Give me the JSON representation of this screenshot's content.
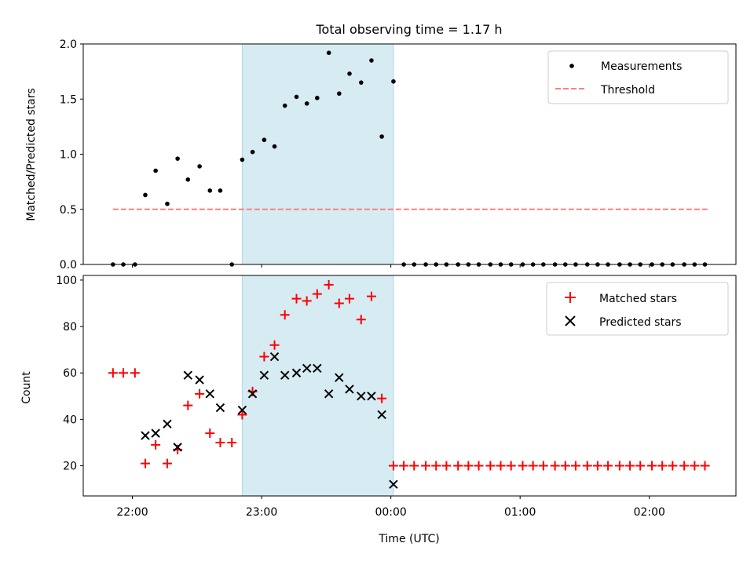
{
  "figure": {
    "title": "Total observing time = 1.17 h",
    "xlabel": "Time (UTC)",
    "x_ticks": [
      "22:00",
      "23:00",
      "00:00",
      "01:00",
      "02:00"
    ]
  },
  "chart_data": [
    {
      "type": "scatter",
      "panel": "top",
      "ylabel": "Matched/Predicted stars",
      "x_unit": "hours since 22:00 UTC",
      "xlim": [
        -0.38,
        4.67
      ],
      "ylim": [
        0,
        2.0
      ],
      "y_ticks": [
        0.0,
        0.5,
        1.0,
        1.5,
        2.0
      ],
      "y_tick_labels": [
        "0.0",
        "0.5",
        "1.0",
        "1.5",
        "2.0"
      ],
      "shaded_interval": [
        0.85,
        2.02
      ],
      "shade_color": "#add8e6",
      "legend_position": "upper right",
      "series": [
        {
          "name": "Measurements",
          "kind": "dots",
          "color": "#000000",
          "points": [
            [
              -0.15,
              0.0
            ],
            [
              -0.07,
              0.0
            ],
            [
              0.02,
              0.0
            ],
            [
              0.1,
              0.63
            ],
            [
              0.18,
              0.85
            ],
            [
              0.27,
              0.55
            ],
            [
              0.35,
              0.96
            ],
            [
              0.43,
              0.77
            ],
            [
              0.52,
              0.89
            ],
            [
              0.6,
              0.67
            ],
            [
              0.68,
              0.67
            ],
            [
              0.77,
              0.0
            ],
            [
              0.85,
              0.95
            ],
            [
              0.93,
              1.02
            ],
            [
              1.02,
              1.13
            ],
            [
              1.1,
              1.07
            ],
            [
              1.18,
              1.44
            ],
            [
              1.27,
              1.52
            ],
            [
              1.35,
              1.46
            ],
            [
              1.43,
              1.51
            ],
            [
              1.52,
              1.92
            ],
            [
              1.6,
              1.55
            ],
            [
              1.68,
              1.73
            ],
            [
              1.77,
              1.65
            ],
            [
              1.85,
              1.85
            ],
            [
              1.93,
              1.16
            ],
            [
              2.02,
              1.66
            ],
            [
              2.1,
              0.0
            ],
            [
              2.18,
              0.0
            ],
            [
              2.27,
              0.0
            ],
            [
              2.35,
              0.0
            ],
            [
              2.43,
              0.0
            ],
            [
              2.52,
              0.0
            ],
            [
              2.6,
              0.0
            ],
            [
              2.68,
              0.0
            ],
            [
              2.77,
              0.0
            ],
            [
              2.85,
              0.0
            ],
            [
              2.93,
              0.0
            ],
            [
              3.02,
              0.0
            ],
            [
              3.1,
              0.0
            ],
            [
              3.18,
              0.0
            ],
            [
              3.27,
              0.0
            ],
            [
              3.35,
              0.0
            ],
            [
              3.43,
              0.0
            ],
            [
              3.52,
              0.0
            ],
            [
              3.6,
              0.0
            ],
            [
              3.68,
              0.0
            ],
            [
              3.77,
              0.0
            ],
            [
              3.85,
              0.0
            ],
            [
              3.93,
              0.0
            ],
            [
              4.02,
              0.0
            ],
            [
              4.1,
              0.0
            ],
            [
              4.18,
              0.0
            ],
            [
              4.27,
              0.0
            ],
            [
              4.35,
              0.0
            ],
            [
              4.43,
              0.0
            ]
          ]
        },
        {
          "name": "Threshold",
          "kind": "dashed-line",
          "color": "#ff7f7f",
          "points": [
            [
              -0.15,
              0.5
            ],
            [
              4.45,
              0.5
            ]
          ]
        }
      ]
    },
    {
      "type": "scatter",
      "panel": "bottom",
      "ylabel": "Count",
      "x_unit": "hours since 22:00 UTC",
      "xlim": [
        -0.38,
        4.67
      ],
      "ylim": [
        7,
        102
      ],
      "y_ticks": [
        20,
        40,
        60,
        80,
        100
      ],
      "y_tick_labels": [
        "20",
        "40",
        "60",
        "80",
        "100"
      ],
      "shaded_interval": [
        0.85,
        2.02
      ],
      "shade_color": "#add8e6",
      "legend_position": "upper right",
      "series": [
        {
          "name": "Matched stars",
          "marker": "plus",
          "color": "#ff0000",
          "points": [
            [
              -0.15,
              60
            ],
            [
              -0.07,
              60
            ],
            [
              0.02,
              60
            ],
            [
              0.1,
              21
            ],
            [
              0.18,
              29
            ],
            [
              0.27,
              21
            ],
            [
              0.35,
              27
            ],
            [
              0.43,
              46
            ],
            [
              0.52,
              51
            ],
            [
              0.6,
              34
            ],
            [
              0.68,
              30
            ],
            [
              0.77,
              30
            ],
            [
              0.85,
              42
            ],
            [
              0.93,
              52
            ],
            [
              1.02,
              67
            ],
            [
              1.1,
              72
            ],
            [
              1.18,
              85
            ],
            [
              1.27,
              92
            ],
            [
              1.35,
              91
            ],
            [
              1.43,
              94
            ],
            [
              1.52,
              98
            ],
            [
              1.6,
              90
            ],
            [
              1.68,
              92
            ],
            [
              1.77,
              83
            ],
            [
              1.85,
              93
            ],
            [
              1.93,
              49
            ],
            [
              2.02,
              20
            ],
            [
              2.1,
              20
            ],
            [
              2.18,
              20
            ],
            [
              2.27,
              20
            ],
            [
              2.35,
              20
            ],
            [
              2.43,
              20
            ],
            [
              2.52,
              20
            ],
            [
              2.6,
              20
            ],
            [
              2.68,
              20
            ],
            [
              2.77,
              20
            ],
            [
              2.85,
              20
            ],
            [
              2.93,
              20
            ],
            [
              3.02,
              20
            ],
            [
              3.1,
              20
            ],
            [
              3.18,
              20
            ],
            [
              3.27,
              20
            ],
            [
              3.35,
              20
            ],
            [
              3.43,
              20
            ],
            [
              3.52,
              20
            ],
            [
              3.6,
              20
            ],
            [
              3.68,
              20
            ],
            [
              3.77,
              20
            ],
            [
              3.85,
              20
            ],
            [
              3.93,
              20
            ],
            [
              4.02,
              20
            ],
            [
              4.1,
              20
            ],
            [
              4.18,
              20
            ],
            [
              4.27,
              20
            ],
            [
              4.35,
              20
            ],
            [
              4.43,
              20
            ]
          ]
        },
        {
          "name": "Predicted stars",
          "marker": "x",
          "color": "#000000",
          "points": [
            [
              0.1,
              33
            ],
            [
              0.18,
              34
            ],
            [
              0.27,
              38
            ],
            [
              0.35,
              28
            ],
            [
              0.43,
              59
            ],
            [
              0.52,
              57
            ],
            [
              0.6,
              51
            ],
            [
              0.68,
              45
            ],
            [
              0.85,
              44
            ],
            [
              0.93,
              51
            ],
            [
              1.02,
              59
            ],
            [
              1.1,
              67
            ],
            [
              1.18,
              59
            ],
            [
              1.27,
              60
            ],
            [
              1.35,
              62
            ],
            [
              1.43,
              62
            ],
            [
              1.52,
              51
            ],
            [
              1.6,
              58
            ],
            [
              1.68,
              53
            ],
            [
              1.77,
              50
            ],
            [
              1.85,
              50
            ],
            [
              1.93,
              42
            ],
            [
              2.02,
              12
            ]
          ]
        }
      ]
    }
  ]
}
